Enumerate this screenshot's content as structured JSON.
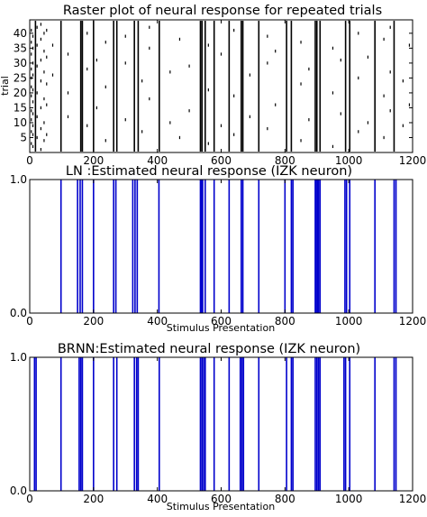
{
  "chart_data": [
    {
      "type": "raster",
      "title": "Raster plot of neural response for repeated trials",
      "xlabel": "",
      "ylabel": "trial",
      "xlim": [
        0,
        1200
      ],
      "ylim": [
        1,
        44
      ],
      "xticks": [
        0,
        200,
        400,
        600,
        800,
        1000,
        1200
      ],
      "yticks": [
        5,
        10,
        15,
        20,
        25,
        30,
        35,
        40
      ],
      "line_color": "#000000",
      "n_trials": 44,
      "reliable_spike_times": [
        18,
        98,
        160,
        165,
        200,
        263,
        273,
        328,
        340,
        406,
        535,
        540,
        550,
        578,
        625,
        663,
        668,
        718,
        805,
        820,
        895,
        900,
        910,
        990,
        1003,
        1082,
        1142
      ],
      "sparse_spike_columns": [
        {
          "x": 5,
          "trials": [
            3,
            7,
            11,
            14,
            19,
            22,
            25,
            28,
            33,
            37,
            41
          ]
        },
        {
          "x": 10,
          "trials": [
            2,
            6,
            9,
            13,
            17,
            21,
            26,
            30,
            35,
            39
          ]
        },
        {
          "x": 23,
          "trials": [
            5,
            12,
            20,
            29,
            36,
            42
          ]
        },
        {
          "x": 35,
          "trials": [
            1,
            8,
            15,
            24,
            31,
            38,
            43
          ]
        },
        {
          "x": 45,
          "trials": [
            4,
            10,
            18,
            27,
            34,
            40
          ]
        },
        {
          "x": 53,
          "trials": [
            6,
            16,
            23,
            32,
            41
          ]
        },
        {
          "x": 72,
          "trials": [
            26,
            36
          ]
        },
        {
          "x": 120,
          "trials": [
            12,
            20,
            33
          ]
        },
        {
          "x": 180,
          "trials": [
            9,
            28,
            40
          ]
        },
        {
          "x": 210,
          "trials": [
            15,
            31
          ]
        },
        {
          "x": 238,
          "trials": [
            4,
            22,
            37
          ]
        },
        {
          "x": 300,
          "trials": [
            11,
            30,
            39
          ]
        },
        {
          "x": 352,
          "trials": [
            7,
            24
          ]
        },
        {
          "x": 375,
          "trials": [
            18,
            35,
            42
          ]
        },
        {
          "x": 440,
          "trials": [
            10,
            27
          ]
        },
        {
          "x": 470,
          "trials": [
            5,
            38
          ]
        },
        {
          "x": 500,
          "trials": [
            14,
            29
          ]
        },
        {
          "x": 560,
          "trials": [
            3,
            21,
            36
          ]
        },
        {
          "x": 600,
          "trials": [
            9,
            33
          ]
        },
        {
          "x": 640,
          "trials": [
            6,
            19,
            41
          ]
        },
        {
          "x": 690,
          "trials": [
            12,
            26
          ]
        },
        {
          "x": 745,
          "trials": [
            8,
            30,
            39
          ]
        },
        {
          "x": 770,
          "trials": [
            16,
            34
          ]
        },
        {
          "x": 850,
          "trials": [
            4,
            23,
            37
          ]
        },
        {
          "x": 875,
          "trials": [
            11,
            28
          ]
        },
        {
          "x": 950,
          "trials": [
            2,
            20,
            35
          ]
        },
        {
          "x": 975,
          "trials": [
            13,
            31
          ]
        },
        {
          "x": 1030,
          "trials": [
            7,
            25,
            40
          ]
        },
        {
          "x": 1060,
          "trials": [
            10,
            32
          ]
        },
        {
          "x": 1110,
          "trials": [
            5,
            19,
            38
          ]
        },
        {
          "x": 1130,
          "trials": [
            14,
            27,
            42
          ]
        },
        {
          "x": 1170,
          "trials": [
            9,
            24
          ]
        },
        {
          "x": 1190,
          "trials": [
            16,
            36
          ]
        }
      ]
    },
    {
      "type": "spike_train",
      "title": "LN  :Estimated neural response (IZK neuron)",
      "xlabel": "Stimulus Presentation",
      "ylabel": "",
      "xlim": [
        0,
        1200
      ],
      "ylim": [
        0,
        1
      ],
      "xticks": [
        0,
        200,
        400,
        600,
        800,
        1000,
        1200
      ],
      "yticks": [
        "0.0",
        "1.0"
      ],
      "line_color": "#0000cc",
      "spike_times": [
        98,
        150,
        158,
        165,
        200,
        263,
        270,
        323,
        330,
        337,
        405,
        535,
        537,
        540,
        542,
        550,
        578,
        625,
        663,
        668,
        718,
        800,
        820,
        825,
        895,
        898,
        902,
        905,
        910,
        988,
        993,
        1003,
        1082,
        1142,
        1148
      ]
    },
    {
      "type": "spike_train",
      "title": "BRNN:Estimated neural response (IZK neuron)",
      "xlabel": "Stimulus Presentation",
      "ylabel": "",
      "xlim": [
        0,
        1200
      ],
      "ylim": [
        0,
        1
      ],
      "xticks": [
        0,
        200,
        400,
        600,
        800,
        1000,
        1200
      ],
      "yticks": [
        "0.0",
        "1.0"
      ],
      "line_color": "#0000cc",
      "spike_times": [
        15,
        20,
        98,
        155,
        160,
        165,
        200,
        263,
        273,
        328,
        335,
        340,
        406,
        535,
        540,
        545,
        550,
        578,
        625,
        660,
        665,
        670,
        718,
        805,
        820,
        825,
        895,
        900,
        905,
        910,
        985,
        990,
        1003,
        1082,
        1142,
        1148
      ]
    }
  ]
}
